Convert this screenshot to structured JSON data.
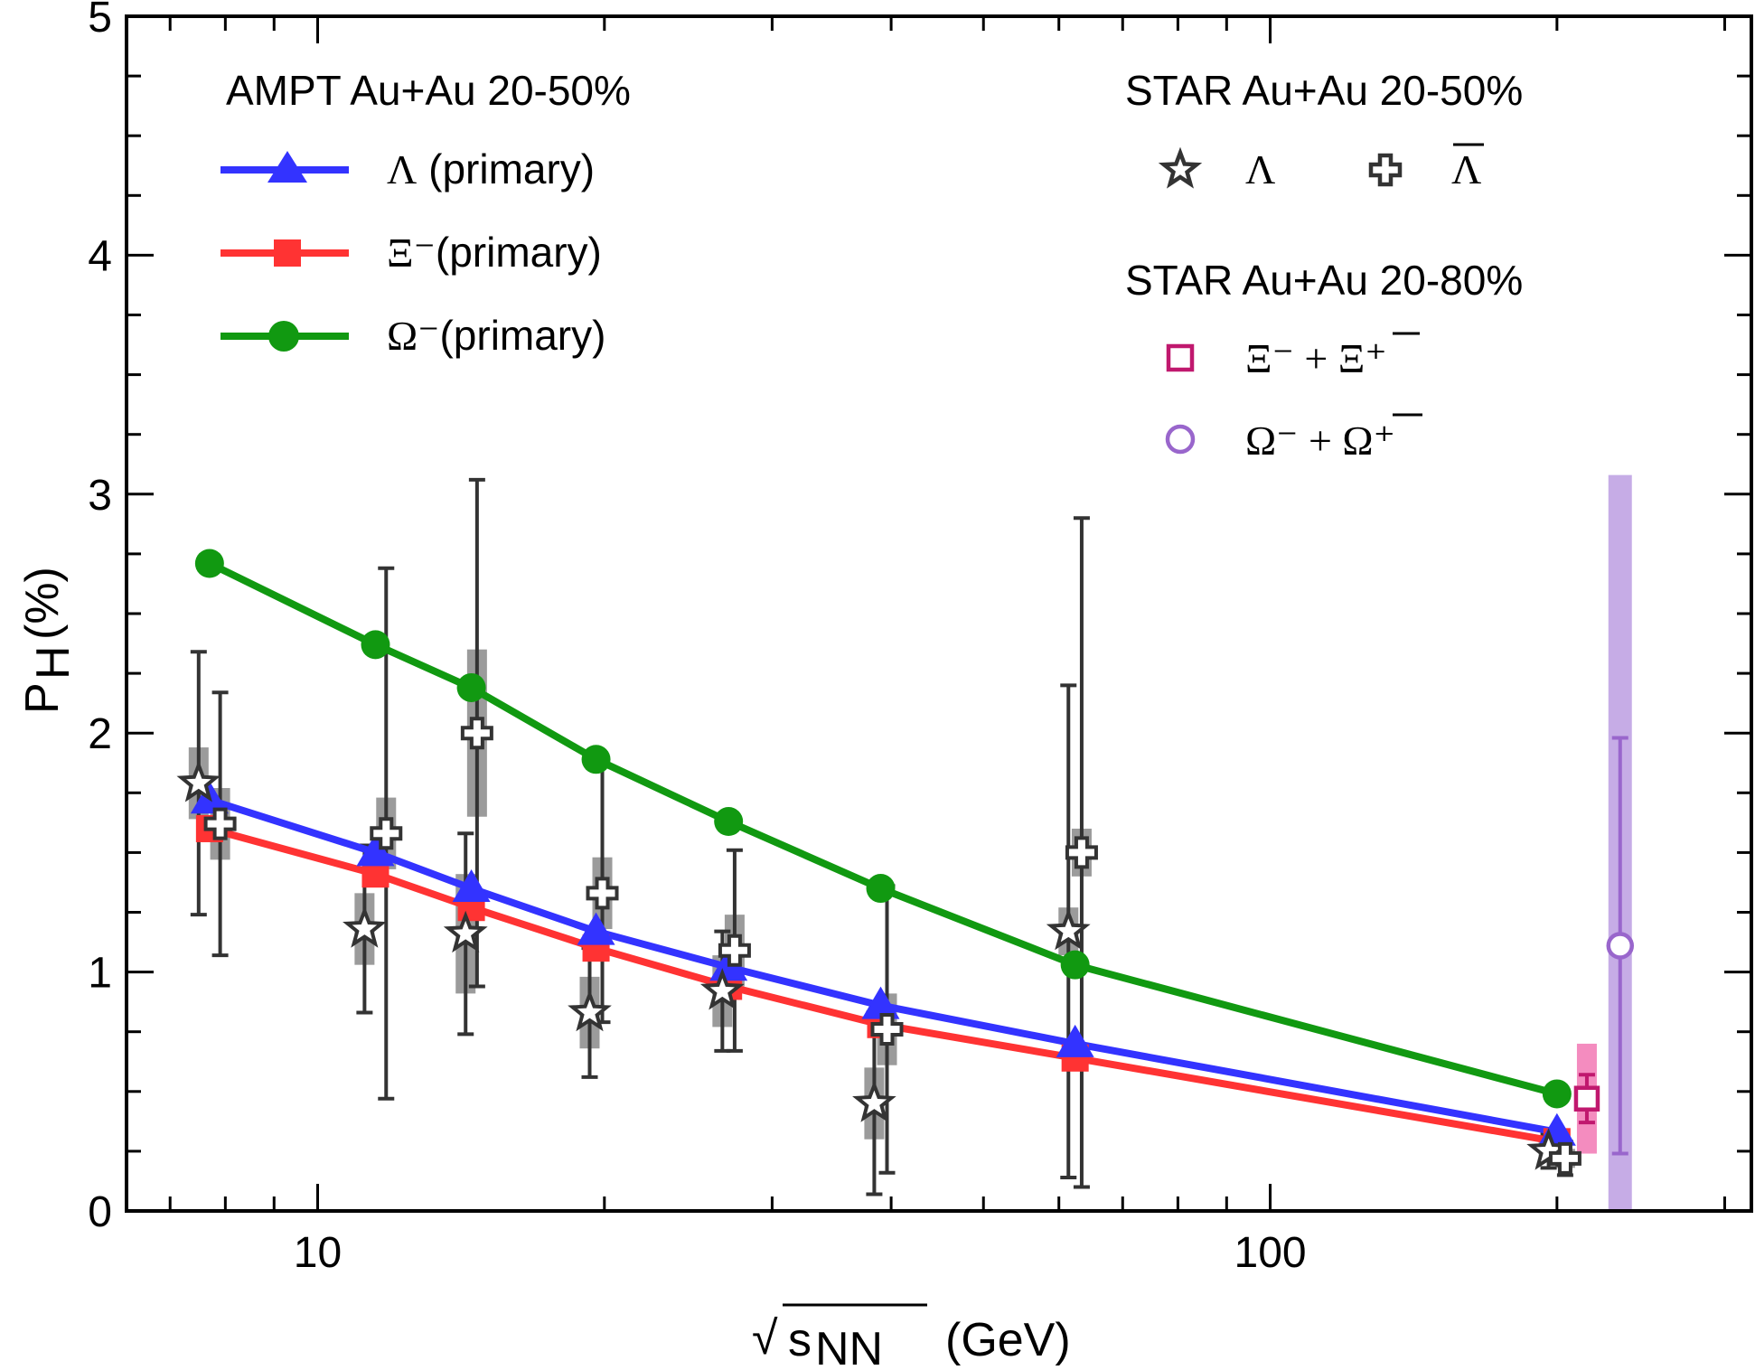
{
  "chart_data": {
    "type": "line",
    "xscale": "log",
    "xlim": [
      6.3,
      320
    ],
    "ylim": [
      0,
      5
    ],
    "x_ticks": [
      10,
      100
    ],
    "y_ticks": [
      0,
      1,
      2,
      3,
      4,
      5
    ],
    "xlabel": {
      "sqrt": "√",
      "var": "s",
      "sub": "NN",
      "unit": "(GeV)"
    },
    "ylabel": {
      "main": "P",
      "sub": "H",
      "unit": "(%)"
    },
    "model_legend_title": "AMPT Au+Au 20-50%",
    "model_series": [
      {
        "name": "Λ (primary)",
        "symbol": "Λ",
        "suffix": " (primary)",
        "color": "#3333ff",
        "marker": "triangle",
        "x": [
          7.7,
          11.5,
          14.5,
          19.6,
          27,
          39,
          62.4,
          200
        ],
        "y": [
          1.72,
          1.5,
          1.35,
          1.17,
          1.02,
          0.86,
          0.7,
          0.33
        ]
      },
      {
        "name": "Ξ⁻(primary)",
        "symbol": "Ξ⁻",
        "suffix": "(primary)",
        "color": "#ff3333",
        "marker": "square",
        "x": [
          7.7,
          11.5,
          14.5,
          19.6,
          27,
          39,
          62.4,
          200
        ],
        "y": [
          1.6,
          1.41,
          1.27,
          1.1,
          0.94,
          0.78,
          0.64,
          0.29
        ]
      },
      {
        "name": "Ω⁻(primary)",
        "symbol": "Ω⁻",
        "suffix": "(primary)",
        "color": "#119911",
        "marker": "circle",
        "x": [
          7.7,
          11.5,
          14.5,
          19.6,
          27,
          39,
          62.4,
          200
        ],
        "y": [
          2.71,
          2.37,
          2.19,
          1.89,
          1.63,
          1.35,
          1.03,
          0.49
        ]
      }
    ],
    "star_legend_title_1": "STAR Au+Au 20-50%",
    "star_legend_title_2": "STAR Au+Au 20-80%",
    "star_series": [
      {
        "name": "Λ",
        "label": "Λ",
        "marker": "star",
        "color": "#333333",
        "x": [
          7.5,
          11.2,
          14.3,
          19.3,
          26.6,
          38.4,
          61.4,
          196
        ],
        "y": [
          1.79,
          1.18,
          1.16,
          0.83,
          0.92,
          0.45,
          1.17,
          0.25
        ],
        "err": [
          0.55,
          0.35,
          0.42,
          0.27,
          0.25,
          0.38,
          1.03,
          0.07
        ],
        "sys": [
          0.15,
          0.15,
          0.25,
          0.15,
          0.15,
          0.15,
          0.1,
          0.04
        ]
      },
      {
        "name": "anti-Λ",
        "label": "Λ",
        "overline": true,
        "marker": "cross",
        "color": "#333333",
        "x": [
          7.9,
          11.8,
          14.7,
          19.9,
          27.4,
          39.6,
          63.4,
          204
        ],
        "y": [
          1.62,
          1.58,
          2.0,
          1.33,
          1.09,
          0.76,
          1.5,
          0.22
        ],
        "err": [
          0.55,
          1.11,
          1.06,
          0.54,
          0.42,
          0.6,
          1.4,
          0.07
        ],
        "sys": [
          0.15,
          0.15,
          0.35,
          0.15,
          0.15,
          0.15,
          0.1,
          0.04
        ]
      },
      {
        "name": "Ξ⁻ + anti-Ξ⁺",
        "label": "Ξ⁻ + Ξ⁺",
        "marker": "open-square",
        "color": "#c0186e",
        "sys_color": "#f48cbf",
        "x": [
          215
        ],
        "y": [
          0.47
        ],
        "err": [
          0.1
        ],
        "sys": [
          0.23
        ]
      },
      {
        "name": "Ω⁻ + anti-Ω⁺",
        "label": "Ω⁻ + Ω⁺",
        "marker": "open-circle",
        "color": "#9966cc",
        "sys_color": "#c6ace6",
        "x": [
          233
        ],
        "y": [
          1.11
        ],
        "err": [
          0.87
        ],
        "sys": [
          1.97
        ]
      }
    ]
  }
}
